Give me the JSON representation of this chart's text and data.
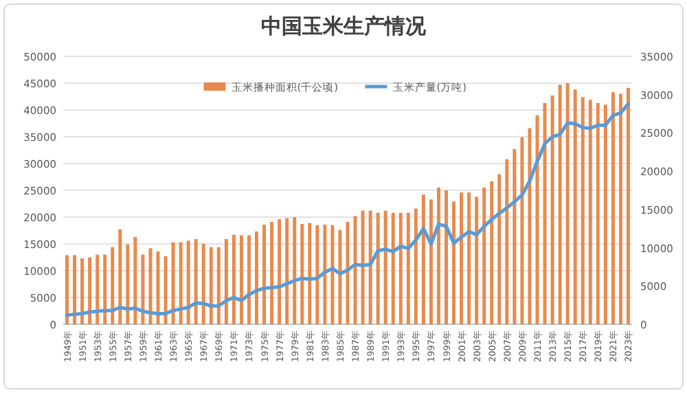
{
  "chart_data": {
    "type": "bar",
    "title": "中国玉米生产情况",
    "categories": [
      "1949年",
      null,
      "1951年",
      null,
      "1953年",
      null,
      "1955年",
      null,
      "1957年",
      null,
      "1959年",
      null,
      "1961年",
      null,
      "1963年",
      null,
      "1965年",
      null,
      "1967年",
      null,
      "1969年",
      null,
      "1971年",
      null,
      "1973年",
      null,
      "1975年",
      null,
      "1977年",
      null,
      "1979年",
      null,
      "1981年",
      null,
      "1983年",
      null,
      "1985年",
      null,
      "1987年",
      null,
      "1989年",
      null,
      "1991年",
      null,
      "1993年",
      null,
      "1995年",
      null,
      "1997年",
      null,
      "1999年",
      null,
      "2001年",
      null,
      "2003年",
      null,
      "2005年",
      null,
      "2007年",
      null,
      "2009年",
      null,
      "2011年",
      null,
      "2013年",
      null,
      "2015年",
      null,
      "2017年",
      null,
      "2019年",
      null,
      "2021年",
      null,
      "2023年"
    ],
    "series": [
      {
        "name": "玉米播种面积(千公顷)",
        "color": "#e8894e",
        "values": [
          12900,
          12900,
          12300,
          12500,
          13000,
          13000,
          14400,
          17700,
          14900,
          16300,
          13000,
          14200,
          13600,
          12700,
          15300,
          15300,
          15600,
          15900,
          15000,
          14400,
          14400,
          15900,
          16700,
          16600,
          16600,
          17300,
          18600,
          19100,
          19600,
          19800,
          20000,
          18700,
          18900,
          18500,
          18600,
          18500,
          17600,
          19100,
          20200,
          21200,
          21200,
          20800,
          21200,
          20800,
          20800,
          20800,
          21600,
          24200,
          23300,
          25500,
          25000,
          22900,
          24600,
          24600,
          23800,
          25500,
          26700,
          28000,
          30800,
          32700,
          34900,
          36600,
          39000,
          41300,
          42700,
          44700,
          45000,
          43800,
          42400,
          41900,
          41300,
          41000,
          43300,
          43000,
          44100
        ]
      },
      {
        "name": "玉米产量(万吨)",
        "type": "line",
        "axis": "y2",
        "color": "#5b9bd5",
        "values": [
          1200,
          1300,
          1400,
          1600,
          1700,
          1800,
          1800,
          2200,
          2000,
          2100,
          1700,
          1500,
          1400,
          1400,
          1800,
          2000,
          2200,
          2800,
          2700,
          2400,
          2400,
          3100,
          3500,
          3100,
          3900,
          4400,
          4700,
          4800,
          4900,
          5300,
          5700,
          6000,
          5900,
          6000,
          6800,
          7300,
          6600,
          7100,
          7800,
          7700,
          7800,
          9600,
          9800,
          9500,
          10200,
          9900,
          11000,
          12500,
          10500,
          13100,
          12800,
          10600,
          11400,
          12100,
          11700,
          12800,
          13700,
          14500,
          15200,
          16000,
          16900,
          18700,
          21300,
          23600,
          24500,
          24800,
          26300,
          26200,
          25700,
          25600,
          26000,
          26000,
          27300,
          27600,
          28800
        ]
      }
    ],
    "ylim": [
      0,
      50000
    ],
    "yticks": [
      0,
      5000,
      10000,
      15000,
      20000,
      25000,
      30000,
      35000,
      40000,
      45000,
      50000
    ],
    "y2lim": [
      0,
      35000
    ],
    "y2ticks": [
      0,
      5000,
      10000,
      15000,
      20000,
      25000,
      30000,
      35000
    ],
    "grid": "y",
    "legend": "top"
  }
}
